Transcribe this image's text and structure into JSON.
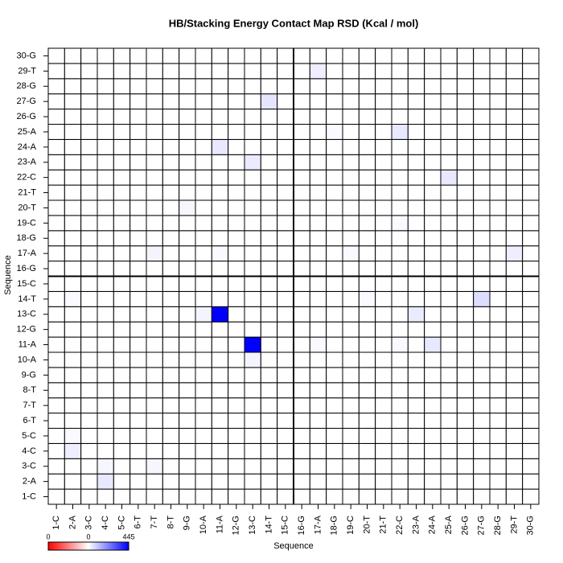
{
  "chart_data": {
    "type": "heatmap",
    "title": "HB/Stacking Energy Contact Map RSD (Kcal / mol)",
    "x_label": "Sequence",
    "y_label": "Sequence",
    "categories": [
      "1-C",
      "2-A",
      "3-C",
      "4-C",
      "5-C",
      "6-T",
      "7-T",
      "8-T",
      "9-G",
      "10-A",
      "11-A",
      "12-G",
      "13-C",
      "14-T",
      "15-C",
      "16-G",
      "17-A",
      "18-G",
      "19-C",
      "20-T",
      "21-T",
      "22-C",
      "23-A",
      "24-A",
      "25-A",
      "26-G",
      "27-G",
      "28-G",
      "29-T",
      "30-G"
    ],
    "z": [
      [
        0,
        0,
        0,
        0,
        0,
        0,
        0,
        0,
        0,
        0,
        0,
        0,
        0,
        0,
        0,
        0,
        0,
        0,
        0,
        0,
        0,
        0,
        0,
        0,
        0,
        0,
        0,
        0,
        0,
        0
      ],
      [
        0,
        0,
        0,
        40,
        0,
        0,
        0,
        0,
        0,
        0,
        0,
        0,
        0,
        0,
        0,
        0,
        0,
        0,
        0,
        0,
        0,
        0,
        0,
        0,
        0,
        0,
        0,
        0,
        0,
        0
      ],
      [
        0,
        0,
        0,
        15,
        0,
        0,
        15,
        0,
        0,
        0,
        0,
        0,
        0,
        0,
        0,
        0,
        0,
        0,
        0,
        0,
        0,
        0,
        0,
        0,
        0,
        0,
        0,
        0,
        0,
        0
      ],
      [
        0,
        30,
        0,
        0,
        0,
        0,
        0,
        0,
        0,
        0,
        0,
        0,
        0,
        0,
        0,
        0,
        0,
        0,
        0,
        0,
        0,
        0,
        0,
        0,
        0,
        0,
        0,
        0,
        0,
        0
      ],
      [
        0,
        10,
        0,
        0,
        0,
        0,
        0,
        0,
        0,
        0,
        0,
        0,
        0,
        0,
        0,
        0,
        0,
        0,
        0,
        0,
        0,
        0,
        0,
        0,
        0,
        0,
        0,
        0,
        0,
        0
      ],
      [
        0,
        0,
        0,
        0,
        0,
        0,
        0,
        0,
        0,
        0,
        0,
        0,
        0,
        0,
        0,
        0,
        0,
        0,
        0,
        0,
        0,
        0,
        0,
        0,
        0,
        0,
        0,
        0,
        0,
        0
      ],
      [
        0,
        0,
        0,
        0,
        0,
        0,
        0,
        0,
        0,
        0,
        0,
        0,
        0,
        0,
        0,
        0,
        0,
        0,
        0,
        0,
        0,
        0,
        0,
        0,
        0,
        0,
        0,
        0,
        0,
        0
      ],
      [
        0,
        0,
        0,
        0,
        0,
        0,
        0,
        0,
        0,
        0,
        0,
        0,
        0,
        0,
        0,
        0,
        0,
        0,
        0,
        0,
        0,
        0,
        0,
        0,
        0,
        0,
        0,
        0,
        0,
        0
      ],
      [
        0,
        0,
        0,
        0,
        0,
        0,
        0,
        0,
        0,
        0,
        0,
        0,
        0,
        0,
        0,
        0,
        0,
        0,
        0,
        0,
        0,
        0,
        0,
        0,
        0,
        0,
        0,
        0,
        0,
        0
      ],
      [
        0,
        0,
        0,
        0,
        0,
        0,
        0,
        0,
        0,
        0,
        0,
        0,
        20,
        0,
        0,
        0,
        0,
        0,
        0,
        0,
        0,
        0,
        0,
        0,
        0,
        0,
        0,
        0,
        0,
        0
      ],
      [
        0,
        0,
        0,
        0,
        0,
        0,
        0,
        0,
        0,
        0,
        0,
        0,
        445,
        0,
        0,
        0,
        10,
        0,
        0,
        0,
        0,
        10,
        0,
        40,
        0,
        0,
        0,
        0,
        0,
        0
      ],
      [
        0,
        0,
        0,
        0,
        0,
        0,
        0,
        0,
        0,
        0,
        0,
        0,
        0,
        0,
        0,
        0,
        0,
        0,
        0,
        0,
        0,
        0,
        0,
        0,
        0,
        0,
        0,
        0,
        0,
        0
      ],
      [
        0,
        0,
        0,
        0,
        0,
        0,
        0,
        0,
        0,
        20,
        445,
        0,
        0,
        0,
        0,
        0,
        0,
        0,
        0,
        0,
        0,
        0,
        35,
        0,
        0,
        0,
        0,
        0,
        0,
        0
      ],
      [
        0,
        10,
        0,
        0,
        0,
        0,
        0,
        0,
        0,
        0,
        0,
        0,
        0,
        0,
        0,
        0,
        0,
        0,
        0,
        10,
        0,
        0,
        0,
        0,
        0,
        0,
        60,
        0,
        0,
        0
      ],
      [
        0,
        0,
        0,
        0,
        0,
        0,
        0,
        0,
        0,
        0,
        0,
        0,
        0,
        0,
        0,
        0,
        0,
        0,
        0,
        0,
        0,
        0,
        0,
        0,
        0,
        0,
        0,
        0,
        0,
        0
      ],
      [
        0,
        0,
        0,
        0,
        0,
        0,
        0,
        0,
        0,
        0,
        0,
        0,
        0,
        0,
        0,
        0,
        0,
        0,
        0,
        0,
        0,
        0,
        0,
        0,
        0,
        0,
        0,
        0,
        0,
        0
      ],
      [
        0,
        0,
        0,
        0,
        0,
        0,
        20,
        0,
        0,
        0,
        10,
        0,
        0,
        0,
        0,
        0,
        0,
        0,
        10,
        0,
        0,
        0,
        0,
        0,
        0,
        0,
        0,
        0,
        30,
        0
      ],
      [
        0,
        0,
        0,
        0,
        0,
        0,
        0,
        0,
        0,
        0,
        0,
        0,
        0,
        0,
        0,
        0,
        0,
        0,
        0,
        0,
        0,
        0,
        0,
        0,
        0,
        0,
        0,
        0,
        0,
        0
      ],
      [
        0,
        0,
        0,
        0,
        0,
        0,
        0,
        0,
        0,
        0,
        0,
        0,
        0,
        0,
        0,
        0,
        0,
        0,
        0,
        0,
        0,
        10,
        0,
        0,
        0,
        0,
        0,
        0,
        0,
        0
      ],
      [
        0,
        0,
        0,
        0,
        0,
        0,
        0,
        0,
        15,
        0,
        0,
        0,
        0,
        0,
        0,
        0,
        0,
        0,
        0,
        0,
        0,
        0,
        0,
        0,
        0,
        0,
        0,
        0,
        0,
        0
      ],
      [
        0,
        0,
        0,
        0,
        0,
        0,
        0,
        0,
        0,
        0,
        0,
        0,
        0,
        0,
        0,
        0,
        0,
        0,
        0,
        0,
        0,
        0,
        0,
        0,
        0,
        0,
        0,
        0,
        0,
        0
      ],
      [
        0,
        0,
        0,
        0,
        0,
        0,
        0,
        0,
        0,
        0,
        0,
        0,
        0,
        0,
        0,
        0,
        0,
        0,
        0,
        0,
        0,
        0,
        0,
        0,
        40,
        0,
        0,
        0,
        0,
        0
      ],
      [
        0,
        0,
        0,
        0,
        0,
        0,
        0,
        0,
        0,
        0,
        0,
        0,
        35,
        0,
        0,
        0,
        0,
        0,
        0,
        0,
        0,
        0,
        0,
        0,
        0,
        0,
        0,
        0,
        0,
        0
      ],
      [
        0,
        0,
        0,
        0,
        0,
        0,
        0,
        0,
        0,
        0,
        40,
        0,
        0,
        0,
        0,
        0,
        0,
        0,
        0,
        0,
        0,
        0,
        0,
        0,
        0,
        0,
        0,
        0,
        0,
        0
      ],
      [
        0,
        0,
        0,
        0,
        0,
        0,
        0,
        0,
        0,
        0,
        0,
        0,
        0,
        0,
        0,
        0,
        0,
        10,
        0,
        0,
        0,
        40,
        0,
        0,
        0,
        0,
        0,
        0,
        0,
        0
      ],
      [
        0,
        0,
        0,
        0,
        0,
        0,
        0,
        0,
        0,
        0,
        0,
        0,
        0,
        0,
        0,
        0,
        0,
        0,
        0,
        0,
        0,
        0,
        0,
        0,
        0,
        0,
        0,
        0,
        0,
        0
      ],
      [
        0,
        0,
        0,
        0,
        0,
        0,
        0,
        0,
        0,
        0,
        0,
        0,
        0,
        45,
        0,
        0,
        0,
        0,
        0,
        0,
        0,
        0,
        0,
        0,
        0,
        0,
        0,
        0,
        0,
        0
      ],
      [
        0,
        0,
        0,
        0,
        0,
        0,
        0,
        0,
        0,
        0,
        0,
        0,
        0,
        0,
        0,
        0,
        0,
        0,
        0,
        0,
        0,
        0,
        0,
        0,
        0,
        0,
        0,
        0,
        0,
        0
      ],
      [
        0,
        0,
        0,
        0,
        0,
        0,
        0,
        0,
        0,
        0,
        0,
        0,
        0,
        0,
        0,
        0,
        30,
        0,
        0,
        0,
        0,
        0,
        0,
        0,
        0,
        0,
        0,
        0,
        0,
        0
      ],
      [
        0,
        0,
        0,
        0,
        0,
        0,
        0,
        0,
        0,
        0,
        0,
        0,
        0,
        0,
        0,
        0,
        0,
        0,
        0,
        0,
        0,
        0,
        0,
        0,
        0,
        0,
        0,
        0,
        0,
        0
      ]
    ],
    "clim": [
      0,
      445
    ],
    "colorscale": [
      "#ff0000",
      "#ffffff",
      "#0000ff"
    ],
    "colorbar_labels": [
      "0",
      "0",
      "445"
    ]
  }
}
